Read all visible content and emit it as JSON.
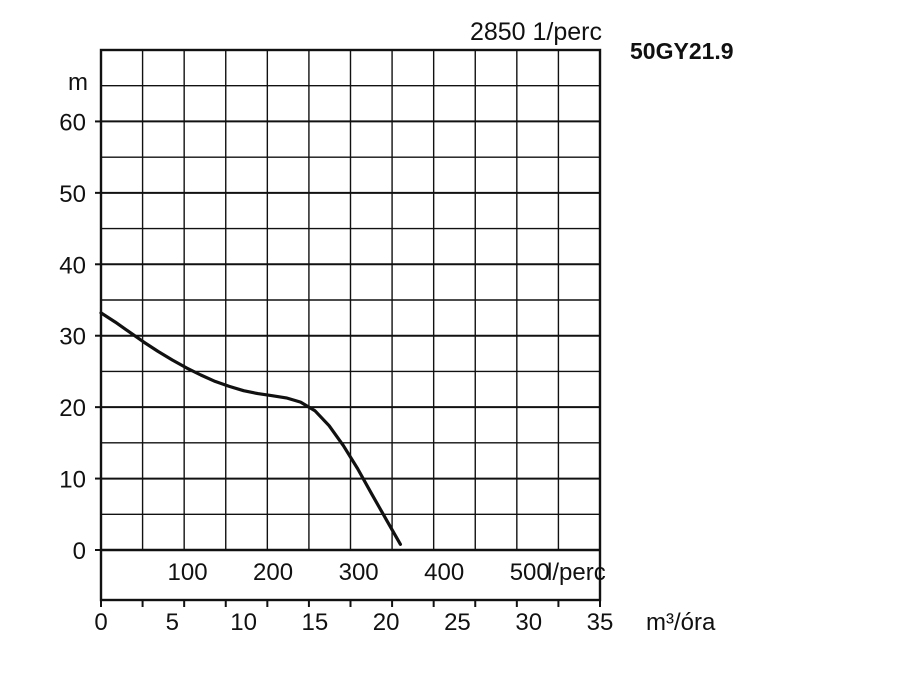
{
  "chart_data": {
    "type": "line",
    "title": "50GY21.9",
    "speed_label": "2850 1/perc",
    "ylabel": "m",
    "ylim": [
      -7,
      70
    ],
    "y_ticks": [
      0,
      10,
      20,
      30,
      40,
      50,
      60
    ],
    "xlabel_flow_lpm": "l/perc",
    "flow_lpm_ticks": [
      100,
      200,
      300,
      400,
      500
    ],
    "xlabel_flow_m3h": "m³/óra",
    "xlim_m3h": [
      0,
      35
    ],
    "x_ticks_m3h": [
      0,
      5,
      10,
      15,
      20,
      25,
      30,
      35
    ],
    "grid": true,
    "series": [
      {
        "x": [
          0,
          1,
          2,
          3,
          4,
          5,
          6,
          7,
          8,
          9,
          10,
          11,
          12,
          13,
          14,
          15,
          16,
          17,
          18,
          19,
          20,
          21
        ],
        "y": [
          33.2,
          31.9,
          30.5,
          29.1,
          27.8,
          26.6,
          25.5,
          24.5,
          23.6,
          22.9,
          22.3,
          21.9,
          21.6,
          21.3,
          20.7,
          19.5,
          17.4,
          14.6,
          11.4,
          7.8,
          4.3,
          0.8
        ]
      }
    ],
    "colors": {
      "line": "#111111",
      "grid": "#111111"
    }
  }
}
